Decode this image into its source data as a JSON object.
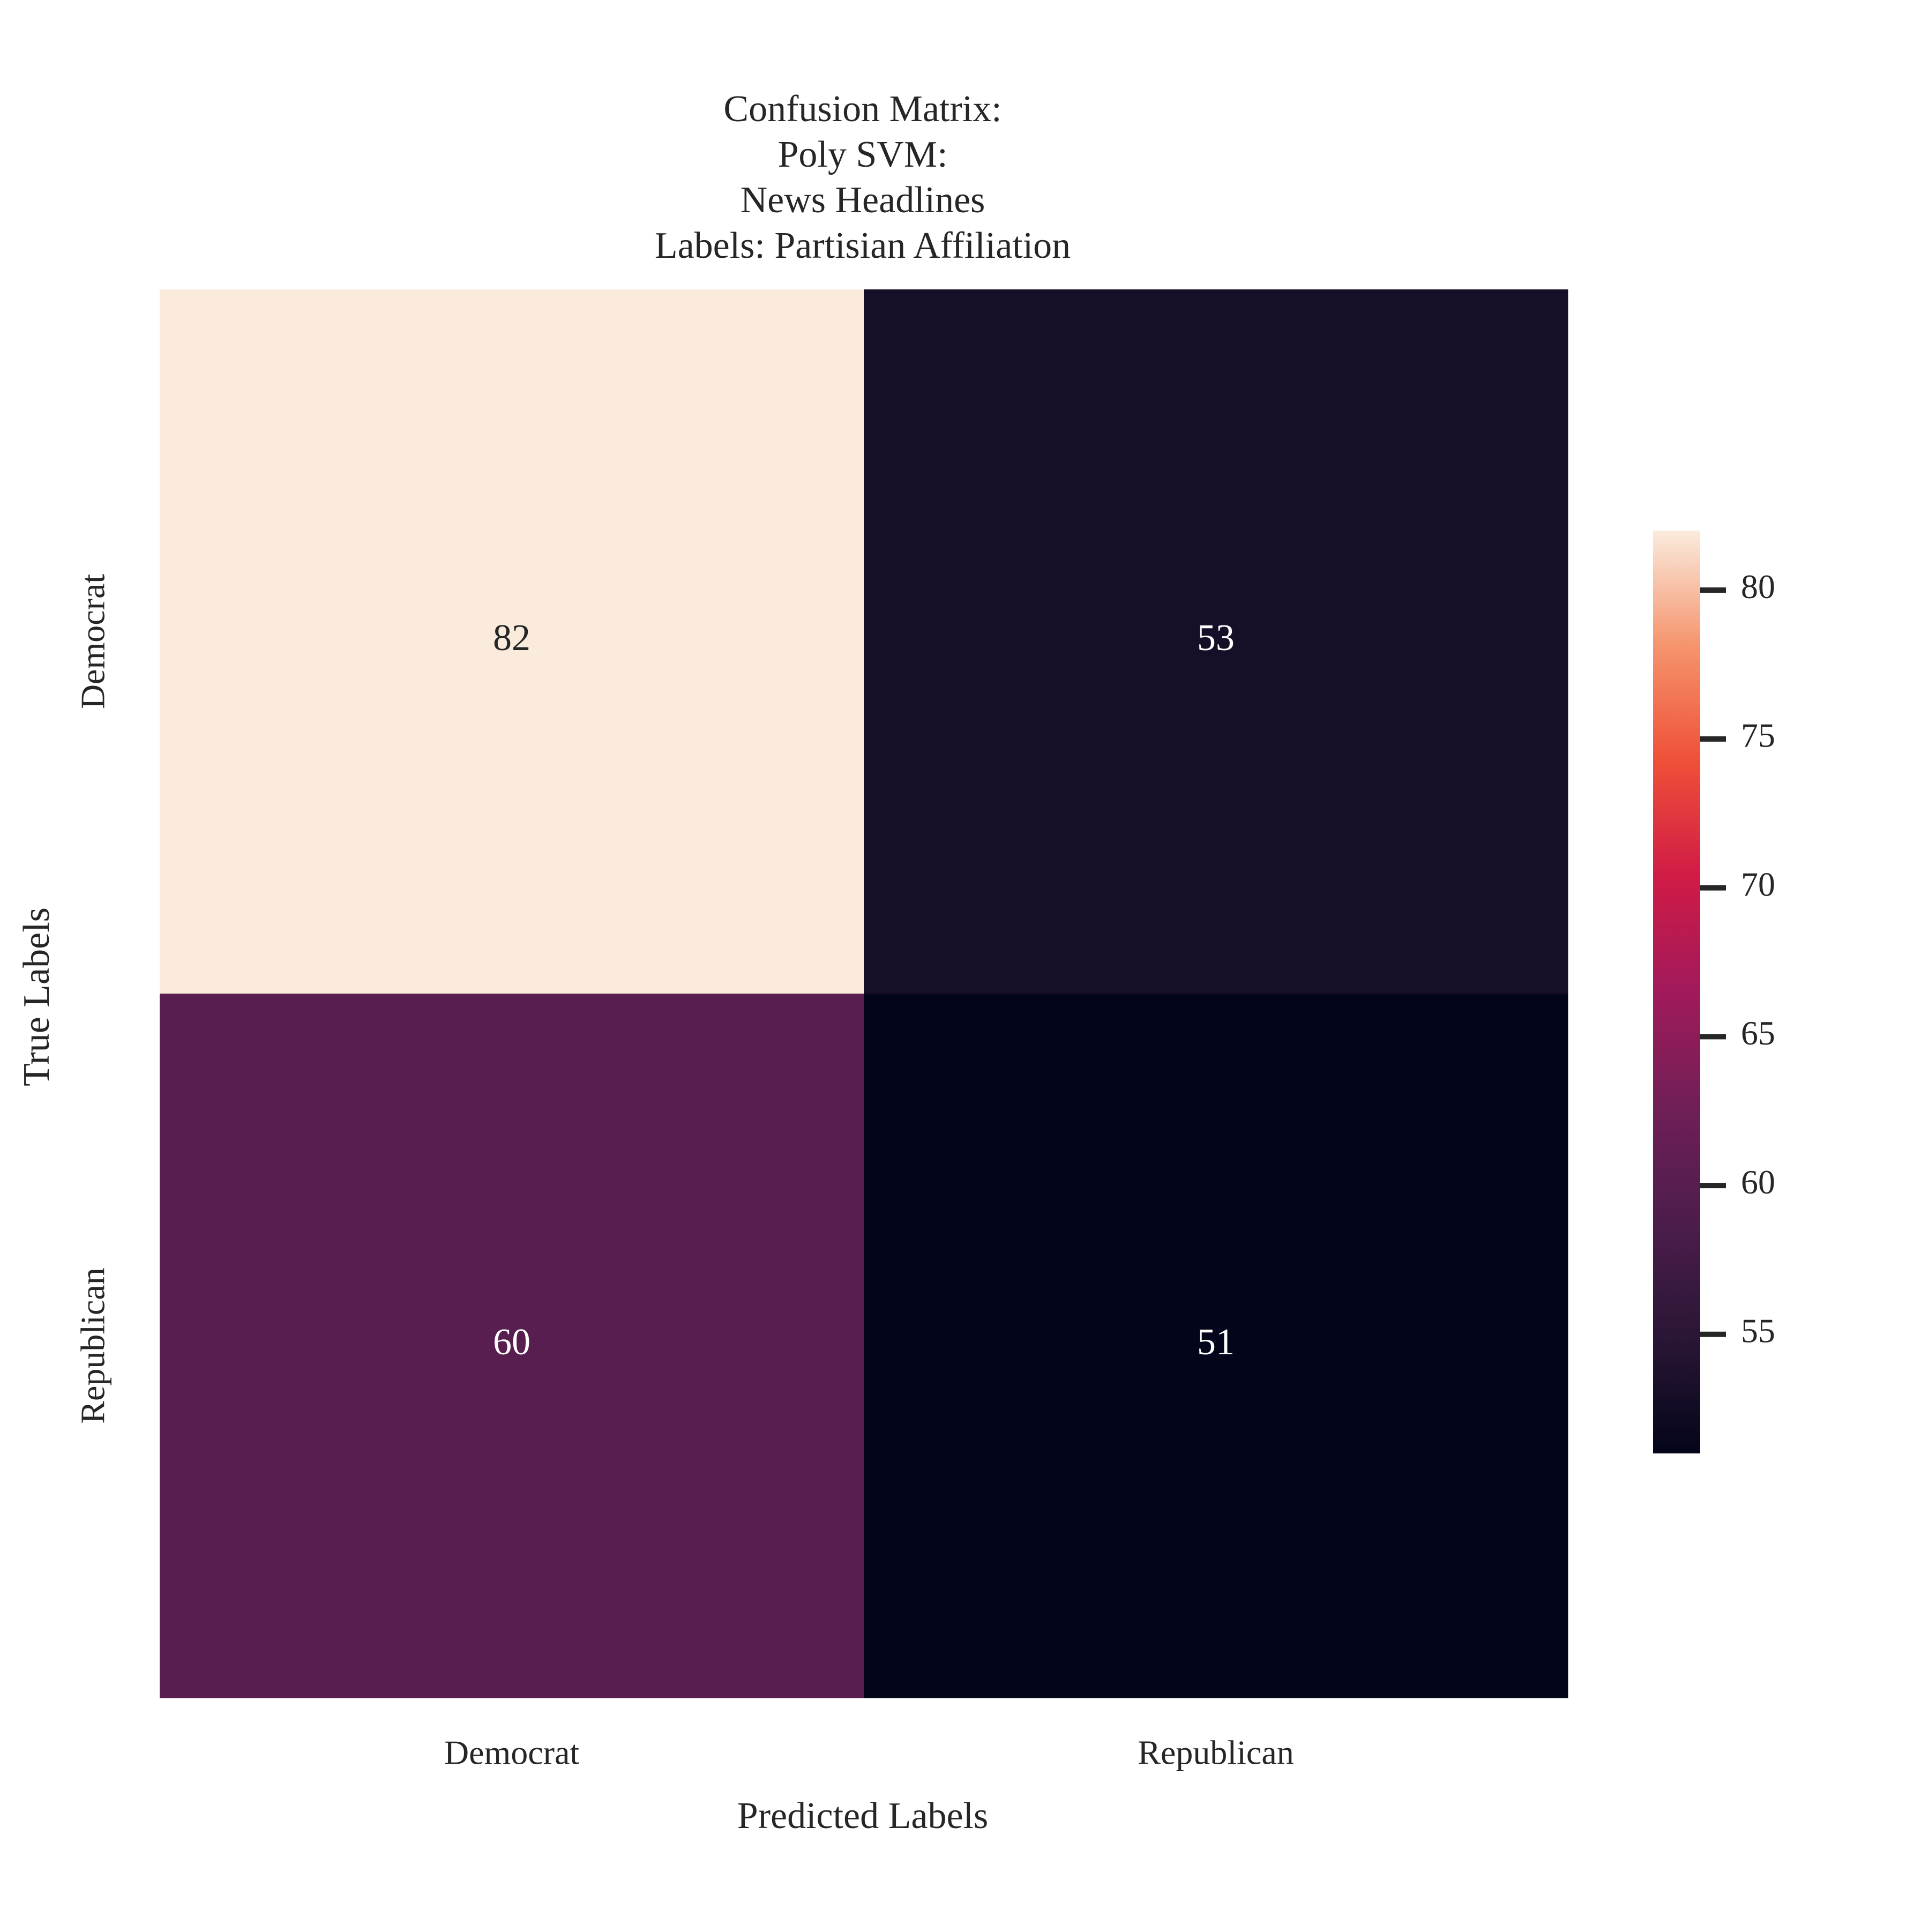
{
  "chart_data": {
    "type": "heatmap",
    "title_lines": [
      "Confusion Matrix:",
      "Poly SVM:",
      "News Headlines",
      "Labels: Partisian Affiliation"
    ],
    "xlabel": "Predicted Labels",
    "ylabel": "True Labels",
    "x_categories": [
      "Democrat",
      "Republican"
    ],
    "y_categories": [
      "Democrat",
      "Republican"
    ],
    "matrix": [
      [
        82,
        53
      ],
      [
        60,
        51
      ]
    ],
    "colormap": "rocket",
    "colorbar": {
      "range": [
        51,
        82
      ],
      "ticks": [
        55,
        60,
        65,
        70,
        75,
        80
      ]
    },
    "grid": false
  }
}
